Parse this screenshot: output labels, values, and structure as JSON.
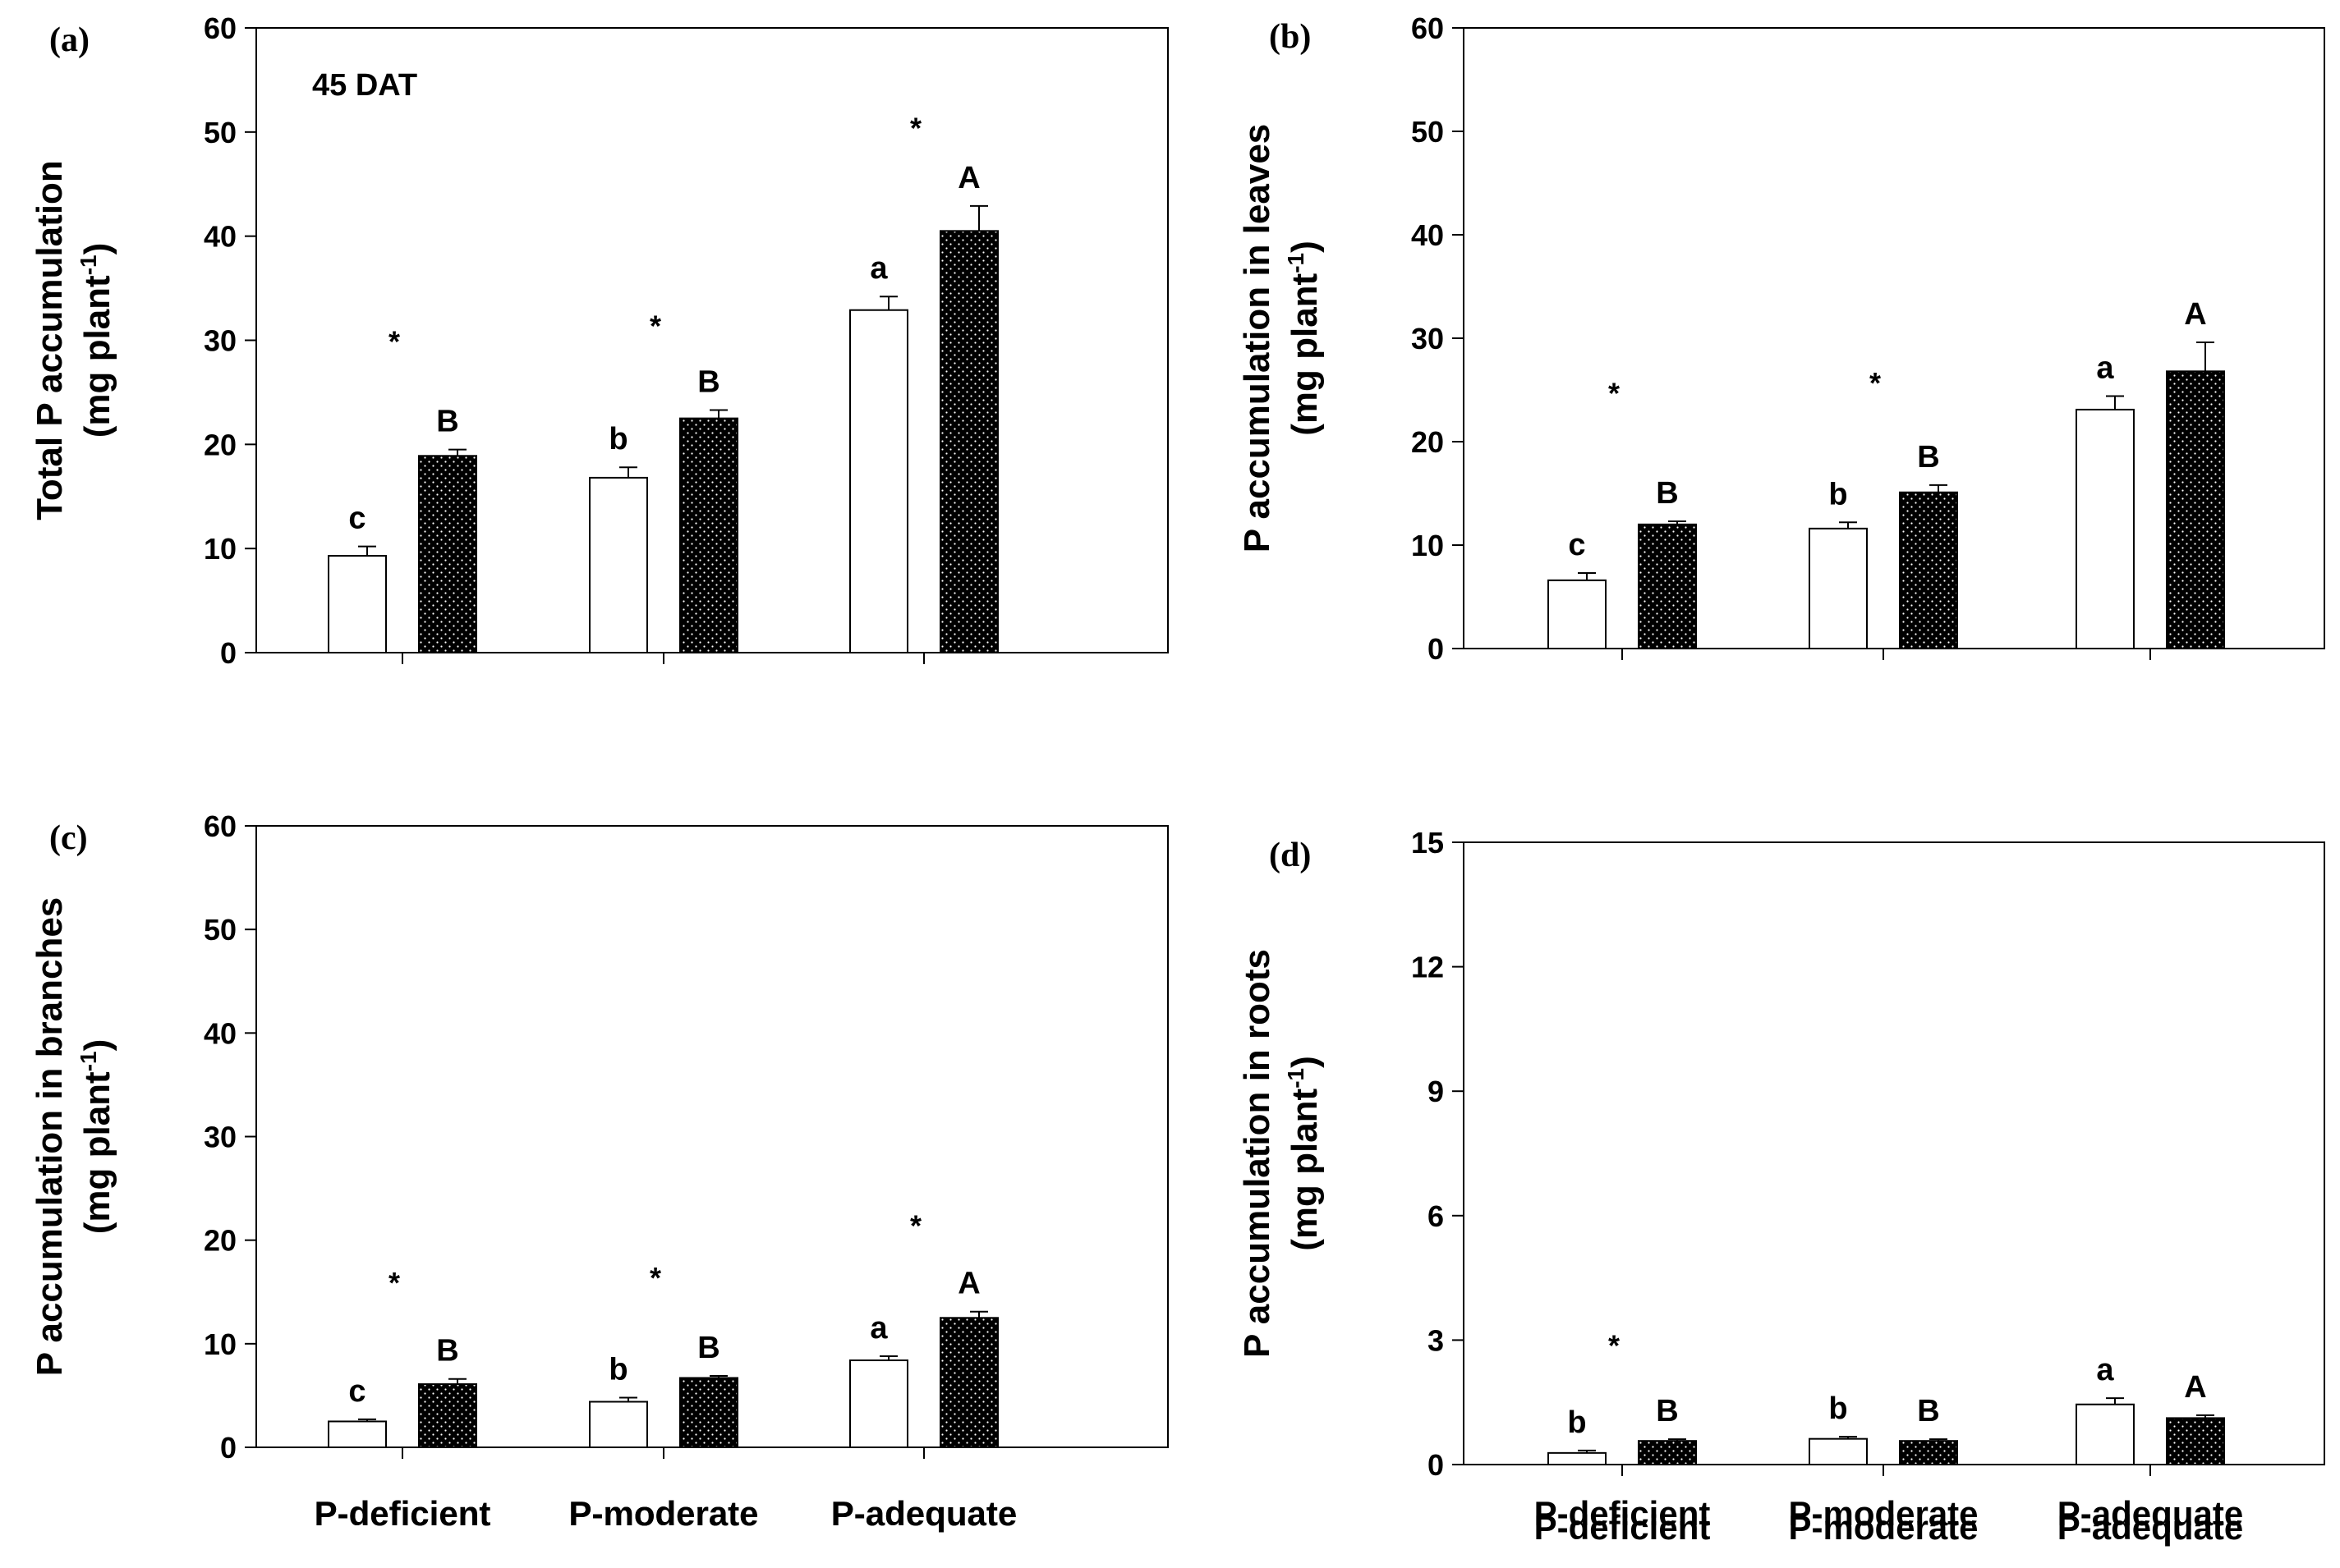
{
  "chart_data": [
    {
      "type": "bar",
      "panel_label": "(a)",
      "annotation": "45 DAT",
      "ylabel": "Total P accumulation",
      "ylabel_unit_main": "(mg plant",
      "ylabel_unit_sup": "-1",
      "ylabel_unit_end": ")",
      "ylim": [
        0,
        60
      ],
      "yticks": [
        0,
        10,
        20,
        30,
        40,
        50,
        60
      ],
      "categories": [
        "P-deficient",
        "P-moderate",
        "P-adequate"
      ],
      "series": [
        {
          "style": "open",
          "values": [
            9.3,
            16.8,
            32.9
          ],
          "errors": [
            0.9,
            1.0,
            1.3
          ],
          "letters": [
            "c",
            "b",
            "a"
          ]
        },
        {
          "style": "dotted",
          "values": [
            18.9,
            22.5,
            40.5
          ],
          "errors": [
            0.6,
            0.8,
            2.4
          ],
          "letters": [
            "B",
            "B",
            "A"
          ]
        }
      ],
      "stars": [
        "*",
        "*",
        "*"
      ],
      "star_values": [
        30,
        31.5,
        50.5
      ]
    },
    {
      "type": "bar",
      "panel_label": "(b)",
      "ylabel": "P accumulation in leaves",
      "ylabel_unit_main": "(mg plant",
      "ylabel_unit_sup": "-1",
      "ylabel_unit_end": ")",
      "ylim": [
        0,
        60
      ],
      "yticks": [
        0,
        10,
        20,
        30,
        40,
        50,
        60
      ],
      "categories": [
        "P-deficient",
        "P-moderate",
        "P-adequate"
      ],
      "series": [
        {
          "style": "open",
          "values": [
            6.6,
            11.6,
            23.1
          ],
          "errors": [
            0.7,
            0.6,
            1.3
          ],
          "letters": [
            "c",
            "b",
            "a"
          ]
        },
        {
          "style": "dotted",
          "values": [
            12.0,
            15.1,
            26.8
          ],
          "errors": [
            0.3,
            0.7,
            2.8
          ],
          "letters": [
            "B",
            "B",
            "A"
          ]
        }
      ],
      "stars": [
        "*",
        "*",
        ""
      ],
      "star_values": [
        24.8,
        25.8,
        0
      ]
    },
    {
      "type": "bar",
      "panel_label": "(c)",
      "ylabel": "P accumulation in branches",
      "ylabel_unit_main": "(mg plant",
      "ylabel_unit_sup": "-1",
      "ylabel_unit_end": ")",
      "ylim": [
        0,
        60
      ],
      "yticks": [
        0,
        10,
        20,
        30,
        40,
        50,
        60
      ],
      "categories": [
        "P-deficient",
        "P-moderate",
        "P-adequate"
      ],
      "series": [
        {
          "style": "open",
          "values": [
            2.5,
            4.4,
            8.4
          ],
          "errors": [
            0.2,
            0.4,
            0.4
          ],
          "letters": [
            "c",
            "b",
            "a"
          ]
        },
        {
          "style": "dotted",
          "values": [
            6.1,
            6.7,
            12.5
          ],
          "errors": [
            0.5,
            0.2,
            0.6
          ],
          "letters": [
            "B",
            "B",
            "A"
          ]
        }
      ],
      "stars": [
        "*",
        "*",
        "*"
      ],
      "star_values": [
        16,
        16.5,
        21.5
      ]
    },
    {
      "type": "bar",
      "panel_label": "(d)",
      "ylabel": "P accumulation in roots",
      "ylabel_unit_main": "(mg plant",
      "ylabel_unit_sup": "-1",
      "ylabel_unit_end": ")",
      "ylim": [
        0,
        15
      ],
      "yticks": [
        0,
        3,
        6,
        9,
        12,
        15
      ],
      "categories": [
        "P-deficient",
        "P-moderate",
        "P-adequate"
      ],
      "series": [
        {
          "style": "open",
          "values": [
            0.28,
            0.62,
            1.45
          ],
          "errors": [
            0.06,
            0.05,
            0.15
          ],
          "letters": [
            "b",
            "b",
            "a"
          ]
        },
        {
          "style": "dotted",
          "values": [
            0.57,
            0.57,
            1.12
          ],
          "errors": [
            0.04,
            0.04,
            0.07
          ],
          "letters": [
            "B",
            "B",
            "A"
          ]
        }
      ],
      "stars": [
        "*",
        "",
        ""
      ],
      "star_values": [
        2.9,
        0,
        0
      ]
    }
  ]
}
